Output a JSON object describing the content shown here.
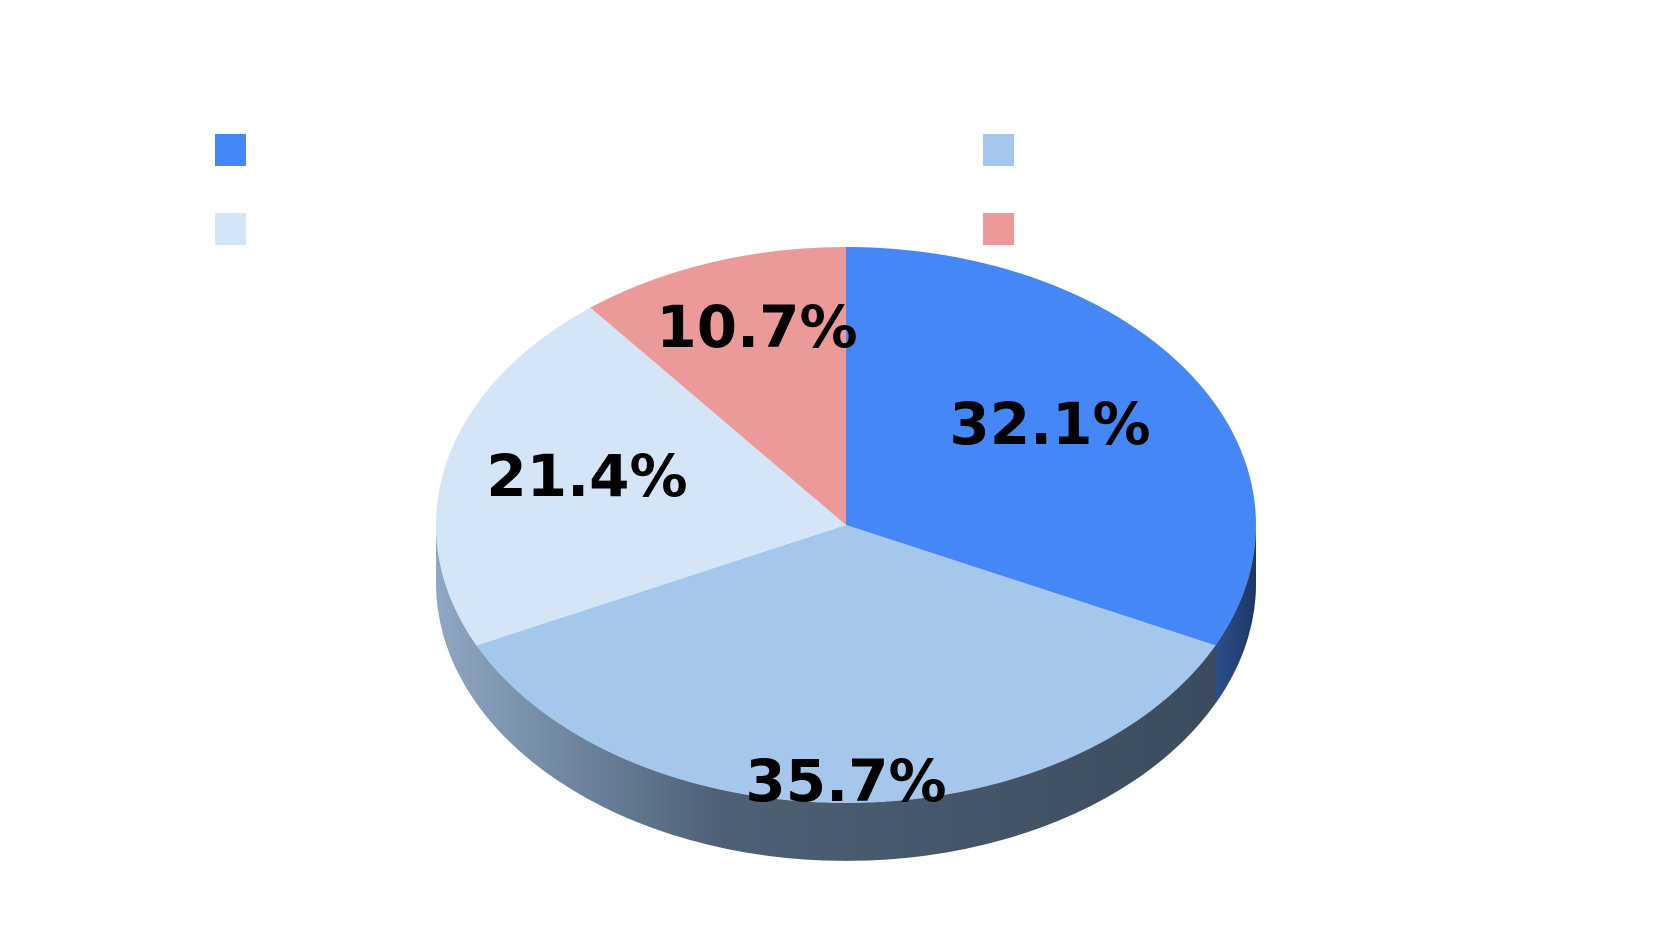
{
  "chart_data": {
    "type": "pie",
    "title": "",
    "slices": [
      {
        "label": "",
        "value": 32.1,
        "display": "32.1%",
        "color": "#4587f6"
      },
      {
        "label": "",
        "value": 35.7,
        "display": "35.7%",
        "color": "#a4c7eb"
      },
      {
        "label": "",
        "value": 21.4,
        "display": "21.4%",
        "color": "#d3e5f7"
      },
      {
        "label": "",
        "value": 10.7,
        "display": "10.7%",
        "color": "#eb9a99"
      }
    ],
    "start_angle_deg": 0,
    "direction": "clockwise",
    "style": "3d",
    "legend": {
      "position": "top",
      "columns": 2,
      "order": [
        0,
        1,
        2,
        3
      ]
    }
  }
}
